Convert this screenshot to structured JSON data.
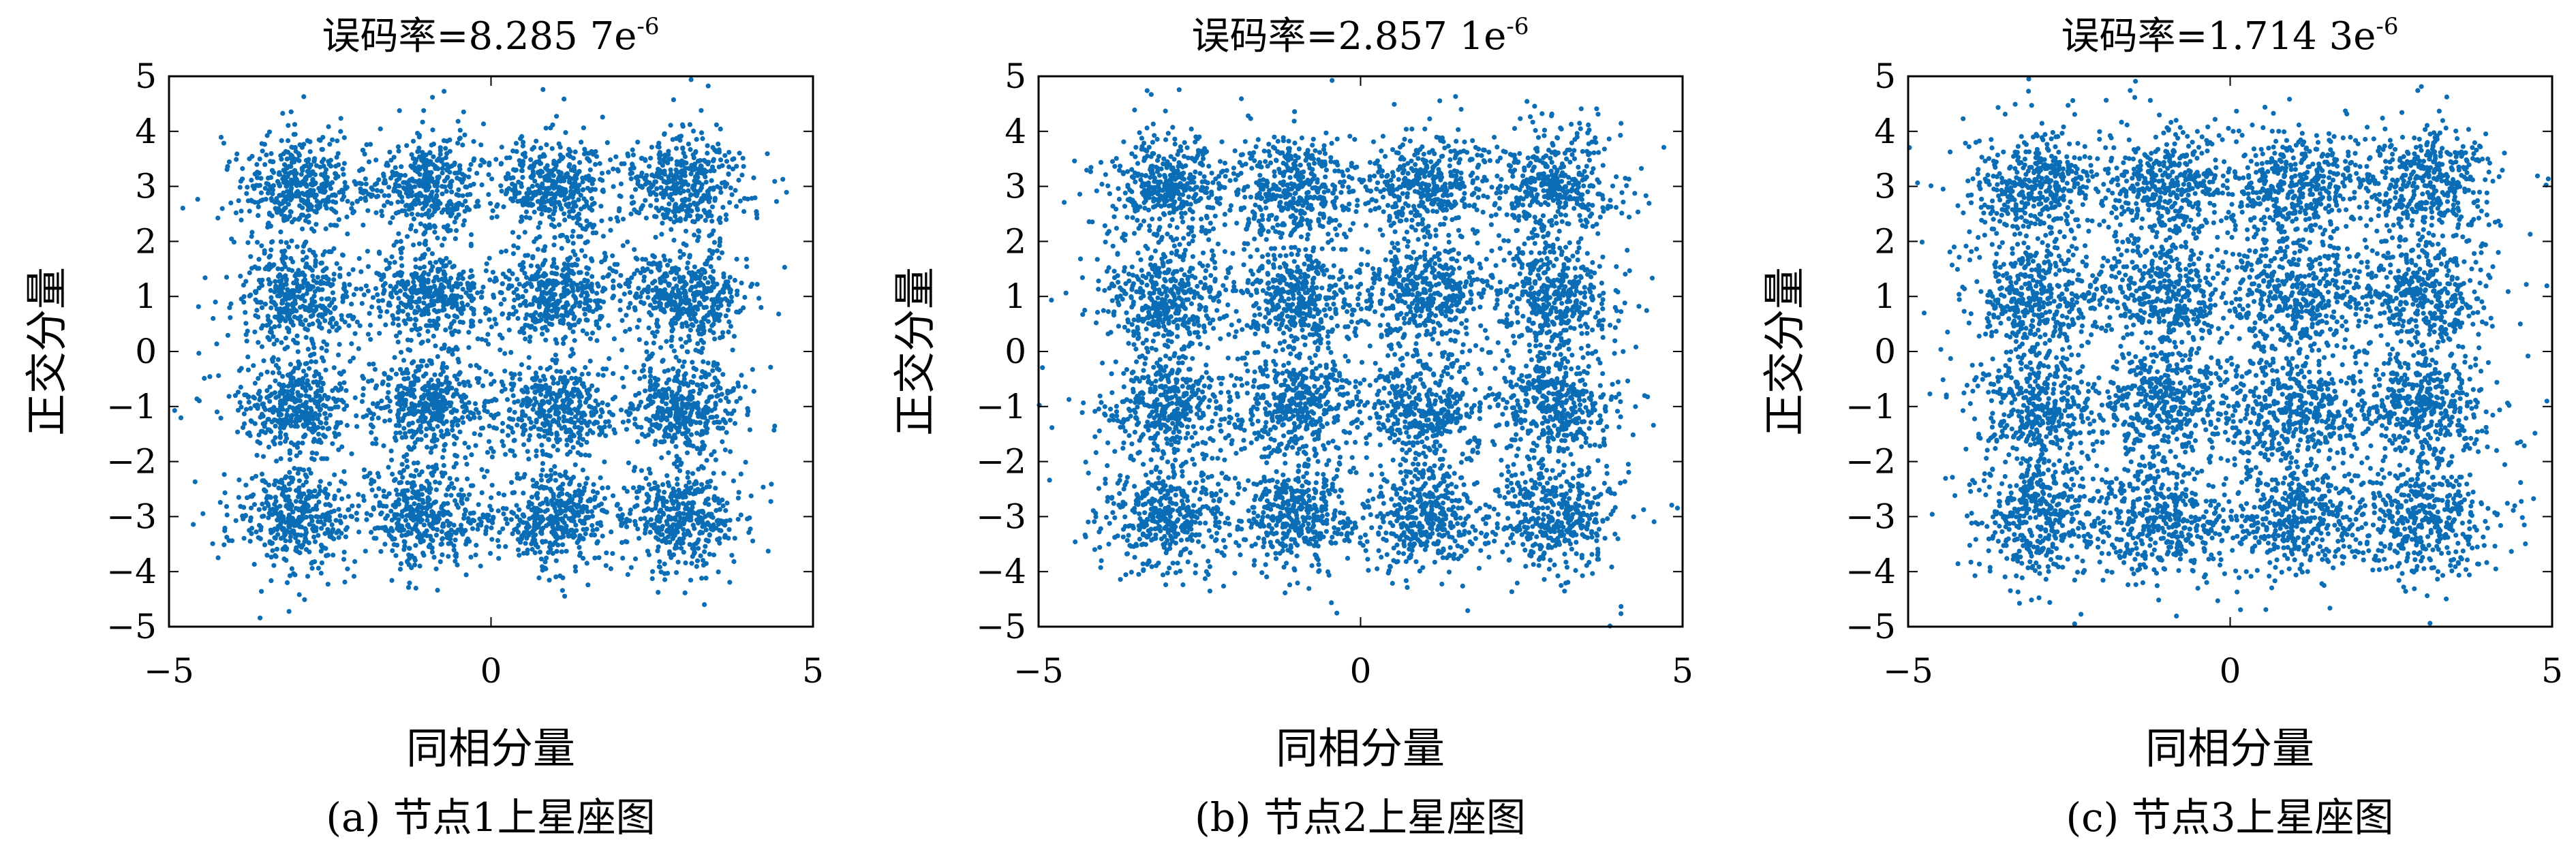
{
  "marker_color": "#0a6db5",
  "chart_data": [
    {
      "type": "scatter",
      "title": "误码率=8.285 7e",
      "title_sup": "-6",
      "xlabel": "同相分量",
      "ylabel": "正交分量",
      "caption": "(a) 节点1上星座图",
      "xlim": [
        -5,
        5
      ],
      "ylim": [
        -5,
        5
      ],
      "x_ticks": [
        "−5",
        "0",
        "5"
      ],
      "y_ticks": [
        "5",
        "4",
        "3",
        "2",
        "1",
        "0",
        "−1",
        "−2",
        "−3",
        "−4",
        "−5"
      ],
      "constellation_centers_x": [
        -3,
        -1,
        1,
        3
      ],
      "constellation_centers_y": [
        -3,
        -1,
        1,
        3
      ],
      "noise_spread": 0.42
    },
    {
      "type": "scatter",
      "title": "误码率=2.857 1e",
      "title_sup": "-6",
      "xlabel": "同相分量",
      "ylabel": "正交分量",
      "caption": "(b) 节点2上星座图",
      "xlim": [
        -5,
        5
      ],
      "ylim": [
        -5,
        5
      ],
      "x_ticks": [
        "−5",
        "0",
        "5"
      ],
      "y_ticks": [
        "5",
        "4",
        "3",
        "2",
        "1",
        "0",
        "−1",
        "−2",
        "−3",
        "−4",
        "−5"
      ],
      "constellation_centers_x": [
        -3,
        -1,
        1,
        3
      ],
      "constellation_centers_y": [
        -3,
        -1,
        1,
        3
      ],
      "noise_spread": 0.46
    },
    {
      "type": "scatter",
      "title": "误码率=1.714 3e",
      "title_sup": "-6",
      "xlabel": "同相分量",
      "ylabel": "正交分量",
      "caption": "(c) 节点3上星座图",
      "xlim": [
        -5,
        5
      ],
      "ylim": [
        -5,
        5
      ],
      "x_ticks": [
        "−5",
        "0",
        "5"
      ],
      "y_ticks": [
        "5",
        "4",
        "3",
        "2",
        "1",
        "0",
        "−1",
        "−2",
        "−3",
        "−4",
        "−5"
      ],
      "constellation_centers_x": [
        -3,
        -1,
        1,
        3
      ],
      "constellation_centers_y": [
        -3,
        -1,
        1,
        3
      ],
      "noise_spread": 0.5
    }
  ]
}
